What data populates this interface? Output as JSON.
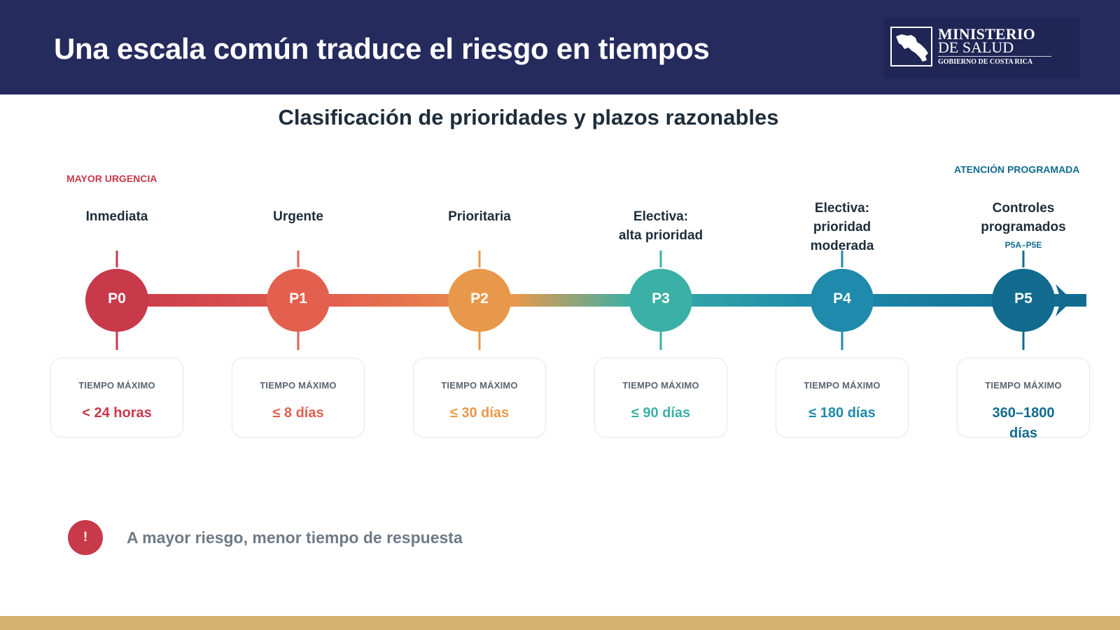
{
  "header": {
    "title": "Una escala común traduce el riesgo en tiempos",
    "logo": {
      "line1": "MINISTERIO",
      "line2": "DE SALUD",
      "line3": "GOBIERNO DE COSTA RICA"
    }
  },
  "subtitle": "Clasificación de prioridades y plazos razonables",
  "scale": {
    "left_label": "MAYOR URGENCIA",
    "right_label": "ATENCIÓN PROGRAMADA"
  },
  "card_caption": "TIEMPO MÁXIMO",
  "levels": [
    {
      "code": "P0",
      "name": "Inmediata",
      "max_time": "< 24 horas",
      "color": "#c8394a"
    },
    {
      "code": "P1",
      "name": "Urgente",
      "max_time": "≤ 8 días",
      "color": "#e3604f"
    },
    {
      "code": "P2",
      "name": "Prioritaria",
      "max_time": "≤ 30 días",
      "color": "#e8984a"
    },
    {
      "code": "P3",
      "name": "Electiva: alta prioridad",
      "max_time": "≤ 90 días",
      "color": "#3bb0a6"
    },
    {
      "code": "P4",
      "name": "Electiva: prioridad moderada",
      "max_time": "≤ 180 días",
      "color": "#1f8aab"
    },
    {
      "code": "P5",
      "name": "Controles programados",
      "sub_code": "P5A–P5E",
      "max_time": "360–1800 días",
      "color": "#126b8f"
    }
  ],
  "callout": {
    "icon": "exclamation-icon",
    "symbol": "!",
    "text": "A mayor riesgo, menor tiempo de respuesta"
  },
  "colors": {
    "header_bg": "#262b5e",
    "footer_bar": "#d5b270",
    "alert": "#c8394a"
  }
}
